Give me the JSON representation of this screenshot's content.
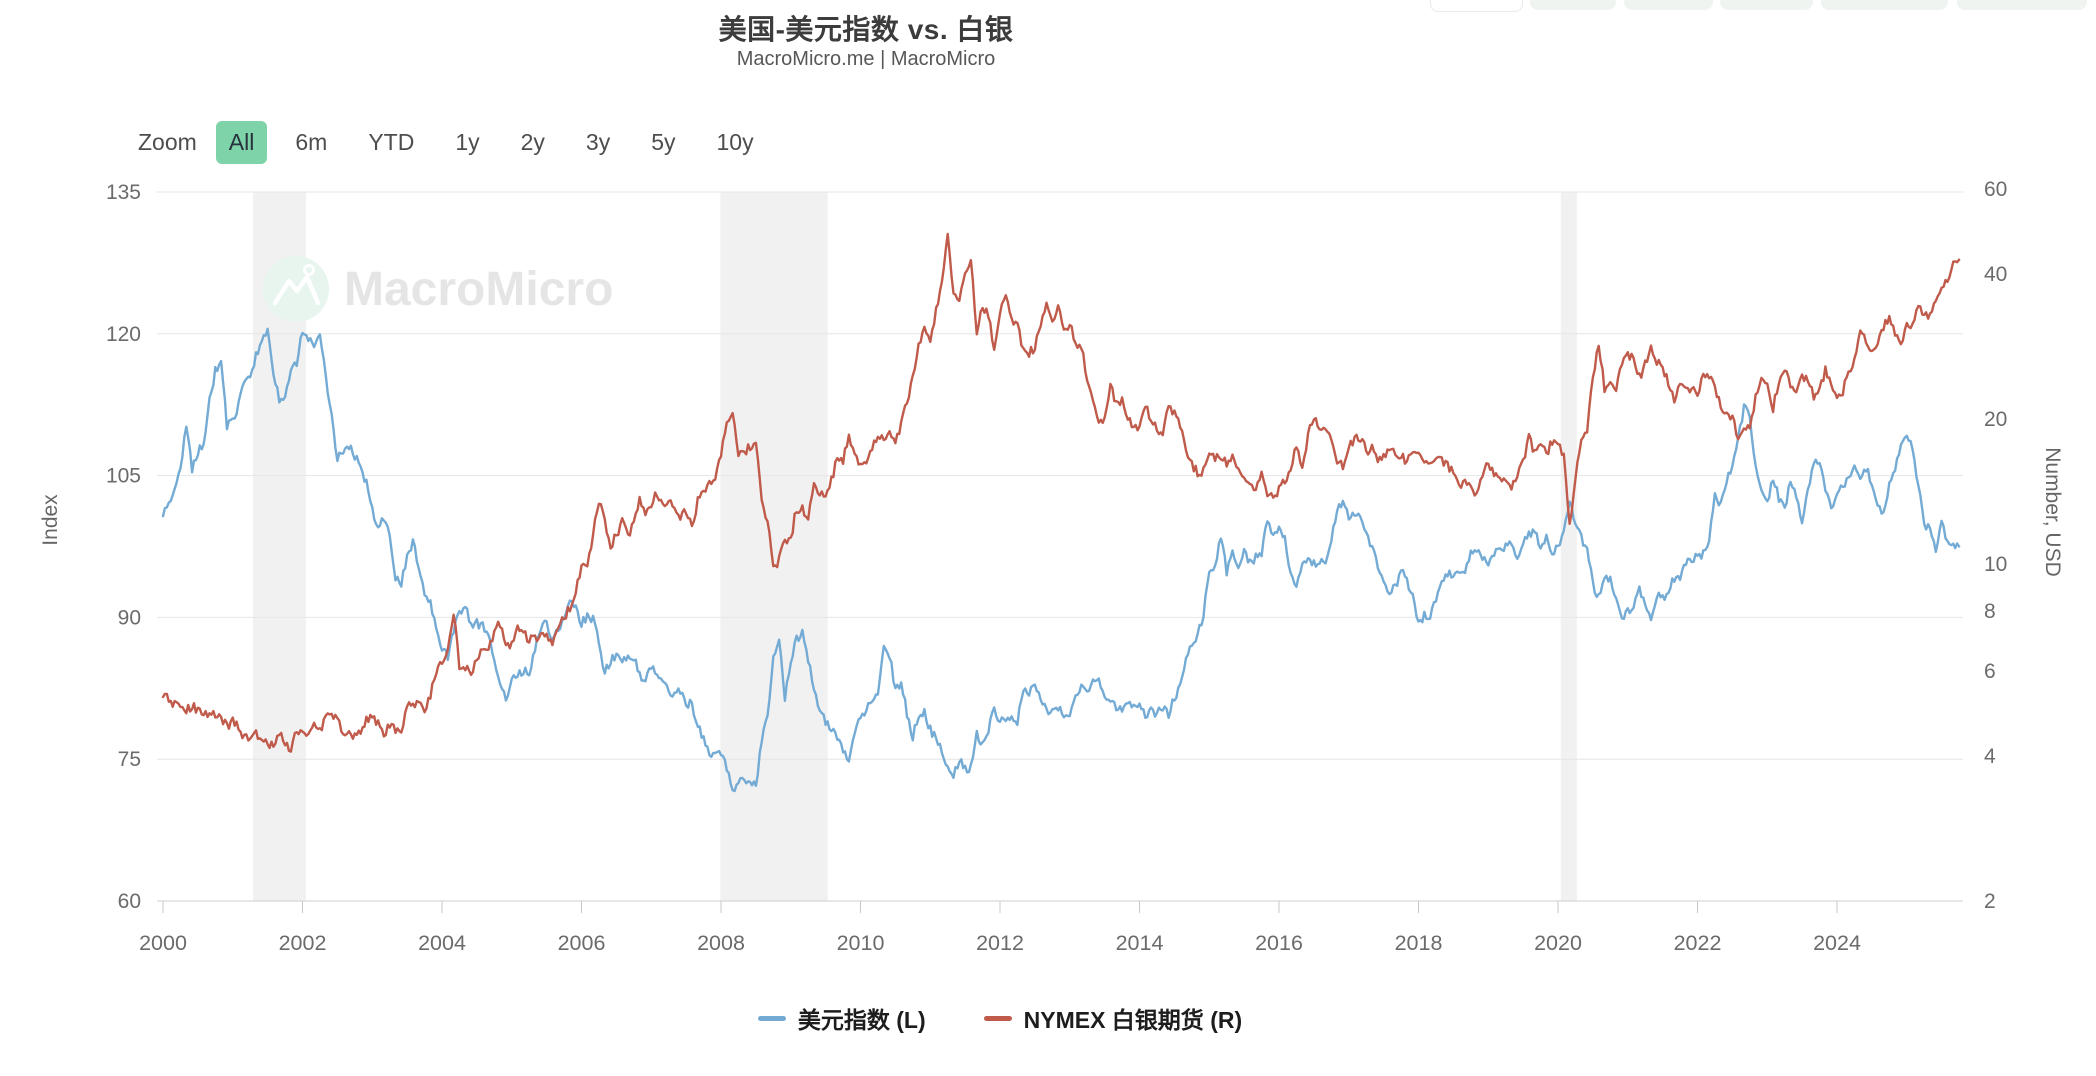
{
  "header": {
    "title": "美国-美元指数 vs. 白银",
    "subtitle": "MacroMicro.me | MacroMicro"
  },
  "toolbar": {
    "zoom_label": "Zoom",
    "ranges": [
      "All",
      "6m",
      "YTD",
      "1y",
      "2y",
      "3y",
      "5y",
      "10y"
    ],
    "active_range": "All"
  },
  "watermark": {
    "text": "MacroMicro",
    "icon": "mountain-flag-icon"
  },
  "axes": {
    "left": {
      "title": "Index",
      "ticks": [
        135,
        120,
        105,
        90,
        75,
        60
      ]
    },
    "right": {
      "title": "Number, USD",
      "ticks": [
        60,
        40,
        20,
        10,
        8,
        6,
        4,
        2
      ]
    },
    "x": {
      "ticks": [
        2000,
        2002,
        2004,
        2006,
        2008,
        2010,
        2012,
        2014,
        2016,
        2018,
        2020,
        2022,
        2024
      ]
    }
  },
  "legend": [
    {
      "label": "美元指数 (L)",
      "color": "#74ABD5"
    },
    {
      "label": "NYMEX 白银期货 (R)",
      "color": "#C05B4B"
    }
  ],
  "colors": {
    "usd_line": "#74ABD5",
    "silver_line": "#C05B4B",
    "active_button_bg": "#7ed3a9",
    "gridline": "#E6E6E6",
    "axis_line": "#CFCFCF",
    "axis_text": "#6b6b6b",
    "recession_band": "#F1F1F1",
    "watermark_text": "#E5E5E5",
    "watermark_circle": "#E7F5EE"
  },
  "chart_data": {
    "type": "line",
    "title": "美国-美元指数 vs. 白银",
    "x_start_year": 2000,
    "x_step": "monthly",
    "x_range": [
      2000.0,
      2025.75
    ],
    "left_axis": {
      "label": "Index",
      "scale": "linear",
      "ylim": [
        60,
        135
      ]
    },
    "right_axis": {
      "label": "Number, USD",
      "scale": "log",
      "ylim": [
        2,
        60
      ]
    },
    "recession_bands_years": [
      [
        2001.29,
        2002.05
      ],
      [
        2007.99,
        2009.53
      ],
      [
        2020.04,
        2020.27
      ]
    ],
    "series": [
      {
        "name": "美元指数 (L)",
        "axis": "left",
        "color": "#74ABD5",
        "values": [
          100.7,
          102.0,
          104.0,
          105.4,
          110.2,
          105.8,
          107.3,
          108.7,
          112.8,
          116.0,
          117.2,
          110.3,
          110.6,
          112.4,
          114.8,
          115.6,
          117.6,
          119.0,
          120.6,
          115.9,
          113.2,
          113.6,
          116.1,
          117.0,
          120.2,
          119.4,
          118.9,
          119.6,
          115.6,
          111.4,
          106.8,
          107.4,
          108.1,
          107.1,
          106.2,
          104.1,
          101.4,
          99.6,
          100.4,
          98.6,
          94.3,
          93.6,
          96.4,
          98.1,
          95.4,
          92.6,
          91.4,
          88.6,
          86.6,
          85.9,
          88.6,
          90.4,
          91.1,
          89.1,
          89.4,
          89.0,
          87.9,
          85.4,
          83.4,
          81.0,
          83.4,
          83.9,
          84.4,
          84.2,
          86.6,
          88.9,
          89.6,
          87.4,
          88.9,
          89.9,
          92.2,
          91.0,
          89.4,
          90.1,
          89.9,
          87.4,
          84.2,
          85.4,
          85.9,
          85.1,
          86.1,
          85.9,
          83.9,
          83.4,
          84.9,
          83.9,
          83.4,
          81.9,
          81.9,
          82.4,
          80.9,
          80.9,
          78.4,
          77.4,
          75.4,
          76.1,
          75.9,
          73.9,
          71.8,
          72.4,
          72.9,
          72.4,
          72.1,
          76.9,
          79.6,
          85.4,
          87.4,
          81.4,
          85.6,
          87.6,
          88.6,
          85.4,
          82.4,
          80.1,
          78.9,
          78.4,
          76.9,
          76.1,
          74.9,
          77.6,
          79.4,
          80.4,
          81.4,
          81.9,
          86.6,
          86.1,
          82.4,
          83.1,
          79.9,
          77.4,
          79.6,
          79.9,
          78.1,
          77.1,
          75.9,
          73.9,
          73.1,
          74.9,
          73.9,
          74.1,
          77.6,
          76.4,
          78.1,
          80.2,
          79.1,
          78.7,
          79.4,
          78.9,
          82.6,
          81.9,
          82.9,
          81.4,
          79.9,
          80.1,
          80.2,
          79.8,
          79.6,
          81.4,
          82.9,
          82.1,
          83.4,
          83.1,
          81.9,
          81.4,
          80.2,
          80.4,
          80.9,
          80.3,
          81.1,
          79.8,
          80.1,
          79.8,
          80.4,
          79.8,
          81.4,
          82.9,
          85.9,
          86.9,
          88.3,
          90.3,
          94.8,
          95.3,
          98.4,
          94.9,
          96.9,
          95.6,
          97.2,
          95.8,
          96.3,
          96.9,
          100.2,
          98.7,
          99.6,
          98.2,
          94.8,
          93.1,
          95.9,
          96.1,
          95.6,
          96.1,
          95.4,
          98.3,
          101.5,
          102.2,
          100.4,
          101.1,
          100.4,
          99.1,
          97.3,
          95.6,
          93.4,
          92.7,
          93.1,
          94.9,
          93.9,
          92.3,
          89.1,
          90.3,
          89.9,
          91.8,
          94.1,
          94.6,
          94.4,
          95.1,
          95.1,
          96.9,
          97.3,
          96.2,
          95.6,
          96.6,
          97.3,
          97.5,
          97.8,
          96.4,
          98.1,
          98.9,
          99.1,
          97.4,
          98.3,
          96.7,
          97.4,
          98.9,
          102.5,
          99.7,
          98.3,
          97.4,
          93.4,
          92.2,
          93.9,
          94.0,
          91.9,
          89.9,
          90.6,
          90.9,
          93.2,
          91.3,
          90.0,
          92.4,
          92.1,
          92.6,
          94.2,
          94.1,
          96.0,
          95.7,
          96.6,
          96.7,
          98.3,
          103.0,
          101.8,
          104.7,
          105.9,
          108.8,
          112.2,
          111.5,
          106.0,
          103.5,
          102.1,
          104.9,
          102.6,
          101.7,
          104.2,
          102.9,
          100.3,
          103.6,
          106.2,
          106.7,
          103.5,
          101.4,
          103.4,
          104.1,
          104.5,
          106.0,
          104.7,
          105.9,
          104.1,
          101.7,
          100.8,
          104.0,
          105.8,
          108.4,
          109.4,
          107.6,
          104.2,
          99.5,
          99.4,
          96.9,
          99.9,
          97.9,
          97.7,
          97.5
        ]
      },
      {
        "name": "NYMEX 白银期货 (R)",
        "axis": "right",
        "color": "#C05B4B",
        "values": [
          5.3,
          5.25,
          5.1,
          5.05,
          5.0,
          5.05,
          5.0,
          4.95,
          4.9,
          4.85,
          4.75,
          4.6,
          4.75,
          4.55,
          4.35,
          4.38,
          4.45,
          4.35,
          4.25,
          4.2,
          4.45,
          4.25,
          4.1,
          4.55,
          4.4,
          4.45,
          4.6,
          4.55,
          4.75,
          4.9,
          4.7,
          4.5,
          4.5,
          4.4,
          4.45,
          4.75,
          4.85,
          4.65,
          4.45,
          4.6,
          4.55,
          4.55,
          5.05,
          5.1,
          5.2,
          5.0,
          5.35,
          5.95,
          6.25,
          6.65,
          7.9,
          6.1,
          6.15,
          5.9,
          6.3,
          6.65,
          6.7,
          7.2,
          7.55,
          6.8,
          6.75,
          7.3,
          7.25,
          6.95,
          7.0,
          7.1,
          7.1,
          6.85,
          7.45,
          7.75,
          8.1,
          8.8,
          9.8,
          9.9,
          11.5,
          13.6,
          12.4,
          10.8,
          11.5,
          12.2,
          11.5,
          12.1,
          13.5,
          12.9,
          13.4,
          14.1,
          13.3,
          13.6,
          13.1,
          12.5,
          12.9,
          12.0,
          13.5,
          14.3,
          14.6,
          14.8,
          16.8,
          19.8,
          20.4,
          16.9,
          17.0,
          17.5,
          17.7,
          13.8,
          12.2,
          9.8,
          10.2,
          11.3,
          11.2,
          13.1,
          13.0,
          12.3,
          14.8,
          13.9,
          13.9,
          14.9,
          16.5,
          16.3,
          18.5,
          16.9,
          16.2,
          16.5,
          17.5,
          18.6,
          18.4,
          18.7,
          18.0,
          19.4,
          21.7,
          24.6,
          28.2,
          30.9,
          28.3,
          33.9,
          37.9,
          48.0,
          36.5,
          34.8,
          40.1,
          41.8,
          30.1,
          34.3,
          32.7,
          27.9,
          33.3,
          35.5,
          32.2,
          31.0,
          27.9,
          27.5,
          27.9,
          31.7,
          34.6,
          32.3,
          34.2,
          30.2,
          31.4,
          28.6,
          28.3,
          24.2,
          22.2,
          19.6,
          19.7,
          23.4,
          21.7,
          21.9,
          20.0,
          19.4,
          19.2,
          21.3,
          19.8,
          19.1,
          18.7,
          21.0,
          20.4,
          19.4,
          17.1,
          16.1,
          15.5,
          15.6,
          17.2,
          16.6,
          16.6,
          16.1,
          16.7,
          15.7,
          14.8,
          14.6,
          14.5,
          15.6,
          14.1,
          13.8,
          14.3,
          14.9,
          15.4,
          17.8,
          16.0,
          18.4,
          20.3,
          18.7,
          19.2,
          17.8,
          16.5,
          15.9,
          17.5,
          18.3,
          18.3,
          17.2,
          17.3,
          16.6,
          16.8,
          17.5,
          16.7,
          16.7,
          16.4,
          17.1,
          17.3,
          16.4,
          16.3,
          16.4,
          16.4,
          16.1,
          15.5,
          14.5,
          14.7,
          14.3,
          14.1,
          15.5,
          16.1,
          15.2,
          15.1,
          15.0,
          14.6,
          15.3,
          16.3,
          18.3,
          17.0,
          18.1,
          17.0,
          17.9,
          18.0,
          16.7,
          12.0,
          15.0,
          18.5,
          18.6,
          24.4,
          28.3,
          23.2,
          23.7,
          22.6,
          26.4,
          27.0,
          26.7,
          24.4,
          25.9,
          28.0,
          26.2,
          25.5,
          23.9,
          22.1,
          23.9,
          22.9,
          23.3,
          22.4,
          24.4,
          24.6,
          23.0,
          21.5,
          20.4,
          20.2,
          17.9,
          19.0,
          19.2,
          22.2,
          24.0,
          23.6,
          20.9,
          24.1,
          25.1,
          23.6,
          22.8,
          24.4,
          24.4,
          22.2,
          22.8,
          25.3,
          23.8,
          22.5,
          22.9,
          25.0,
          26.3,
          30.4,
          29.1,
          28.0,
          28.8,
          31.2,
          32.7,
          30.3,
          28.9,
          31.3,
          31.2,
          34.1,
          32.9,
          33.0,
          35.9,
          36.8,
          38.6,
          42.0,
          42.8
        ]
      }
    ]
  }
}
